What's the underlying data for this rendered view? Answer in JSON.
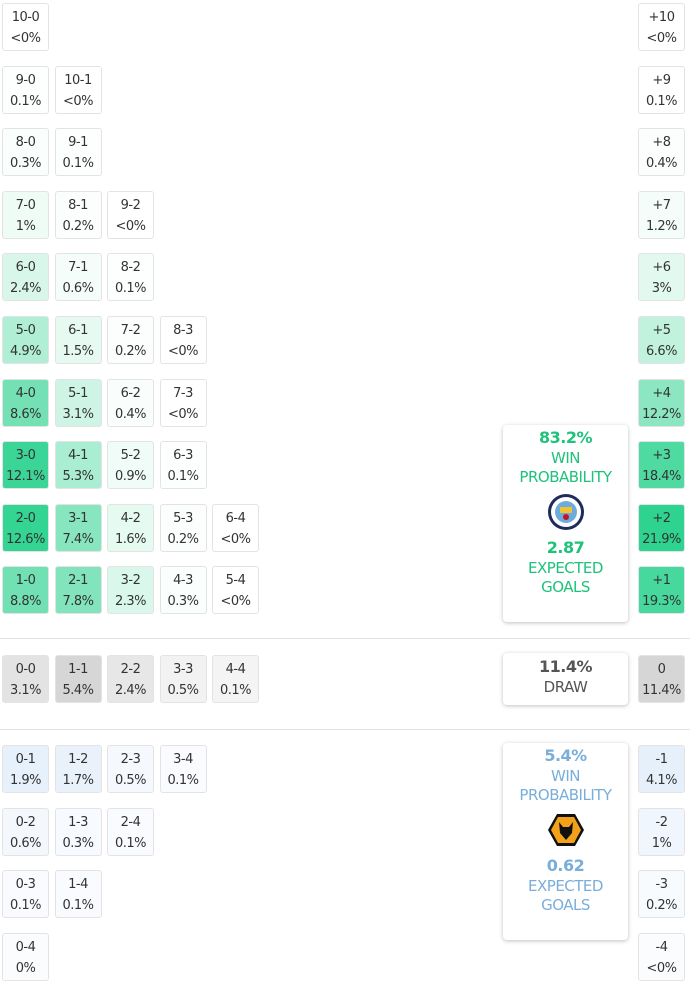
{
  "colors": {
    "win": "#22d08a",
    "draw": "#d6d6d6",
    "loss": "#e6f0fb",
    "win_text": "#1ec27a",
    "loss_text": "#79aedb"
  },
  "home_rows": [
    {
      "diff": "+10",
      "diff_pct": "<0%",
      "cells": [
        [
          "10-0",
          "<0%"
        ]
      ]
    },
    {
      "diff": "+9",
      "diff_pct": "0.1%",
      "cells": [
        [
          "9-0",
          "0.1%"
        ],
        [
          "10-1",
          "<0%"
        ]
      ]
    },
    {
      "diff": "+8",
      "diff_pct": "0.4%",
      "cells": [
        [
          "8-0",
          "0.3%"
        ],
        [
          "9-1",
          "0.1%"
        ]
      ]
    },
    {
      "diff": "+7",
      "diff_pct": "1.2%",
      "cells": [
        [
          "7-0",
          "1%"
        ],
        [
          "8-1",
          "0.2%"
        ],
        [
          "9-2",
          "<0%"
        ]
      ]
    },
    {
      "diff": "+6",
      "diff_pct": "3%",
      "cells": [
        [
          "6-0",
          "2.4%"
        ],
        [
          "7-1",
          "0.6%"
        ],
        [
          "8-2",
          "0.1%"
        ]
      ]
    },
    {
      "diff": "+5",
      "diff_pct": "6.6%",
      "cells": [
        [
          "5-0",
          "4.9%"
        ],
        [
          "6-1",
          "1.5%"
        ],
        [
          "7-2",
          "0.2%"
        ],
        [
          "8-3",
          "<0%"
        ]
      ]
    },
    {
      "diff": "+4",
      "diff_pct": "12.2%",
      "cells": [
        [
          "4-0",
          "8.6%"
        ],
        [
          "5-1",
          "3.1%"
        ],
        [
          "6-2",
          "0.4%"
        ],
        [
          "7-3",
          "<0%"
        ]
      ]
    },
    {
      "diff": "+3",
      "diff_pct": "18.4%",
      "cells": [
        [
          "3-0",
          "12.1%"
        ],
        [
          "4-1",
          "5.3%"
        ],
        [
          "5-2",
          "0.9%"
        ],
        [
          "6-3",
          "0.1%"
        ]
      ]
    },
    {
      "diff": "+2",
      "diff_pct": "21.9%",
      "cells": [
        [
          "2-0",
          "12.6%"
        ],
        [
          "3-1",
          "7.4%"
        ],
        [
          "4-2",
          "1.6%"
        ],
        [
          "5-3",
          "0.2%"
        ],
        [
          "6-4",
          "<0%"
        ]
      ]
    },
    {
      "diff": "+1",
      "diff_pct": "19.3%",
      "cells": [
        [
          "1-0",
          "8.8%"
        ],
        [
          "2-1",
          "7.8%"
        ],
        [
          "3-2",
          "2.3%"
        ],
        [
          "4-3",
          "0.3%"
        ],
        [
          "5-4",
          "<0%"
        ]
      ]
    }
  ],
  "draw_row": {
    "diff": "0",
    "diff_pct": "11.4%",
    "cells": [
      [
        "0-0",
        "3.1%"
      ],
      [
        "1-1",
        "5.4%"
      ],
      [
        "2-2",
        "2.4%"
      ],
      [
        "3-3",
        "0.5%"
      ],
      [
        "4-4",
        "0.1%"
      ]
    ]
  },
  "away_rows": [
    {
      "diff": "-1",
      "diff_pct": "4.1%",
      "cells": [
        [
          "0-1",
          "1.9%"
        ],
        [
          "1-2",
          "1.7%"
        ],
        [
          "2-3",
          "0.5%"
        ],
        [
          "3-4",
          "0.1%"
        ]
      ]
    },
    {
      "diff": "-2",
      "diff_pct": "1%",
      "cells": [
        [
          "0-2",
          "0.6%"
        ],
        [
          "1-3",
          "0.3%"
        ],
        [
          "2-4",
          "0.1%"
        ]
      ]
    },
    {
      "diff": "-3",
      "diff_pct": "0.2%",
      "cells": [
        [
          "0-3",
          "0.1%"
        ],
        [
          "1-4",
          "0.1%"
        ]
      ]
    },
    {
      "diff": "-4",
      "diff_pct": "<0%",
      "cells": [
        [
          "0-4",
          "0%"
        ]
      ]
    }
  ],
  "home_summary": {
    "win_pct": "83.2%",
    "win_label_1": "WIN",
    "win_label_2": "PROBABILITY",
    "xg": "2.87",
    "xg_label_1": "EXPECTED",
    "xg_label_2": "GOALS",
    "crest": "manchester-city-crest"
  },
  "draw_summary": {
    "pct": "11.4%",
    "label": "DRAW"
  },
  "away_summary": {
    "win_pct": "5.4%",
    "win_label_1": "WIN",
    "win_label_2": "PROBABILITY",
    "xg": "0.62",
    "xg_label_1": "EXPECTED",
    "xg_label_2": "GOALS",
    "crest": "wolves-crest"
  }
}
